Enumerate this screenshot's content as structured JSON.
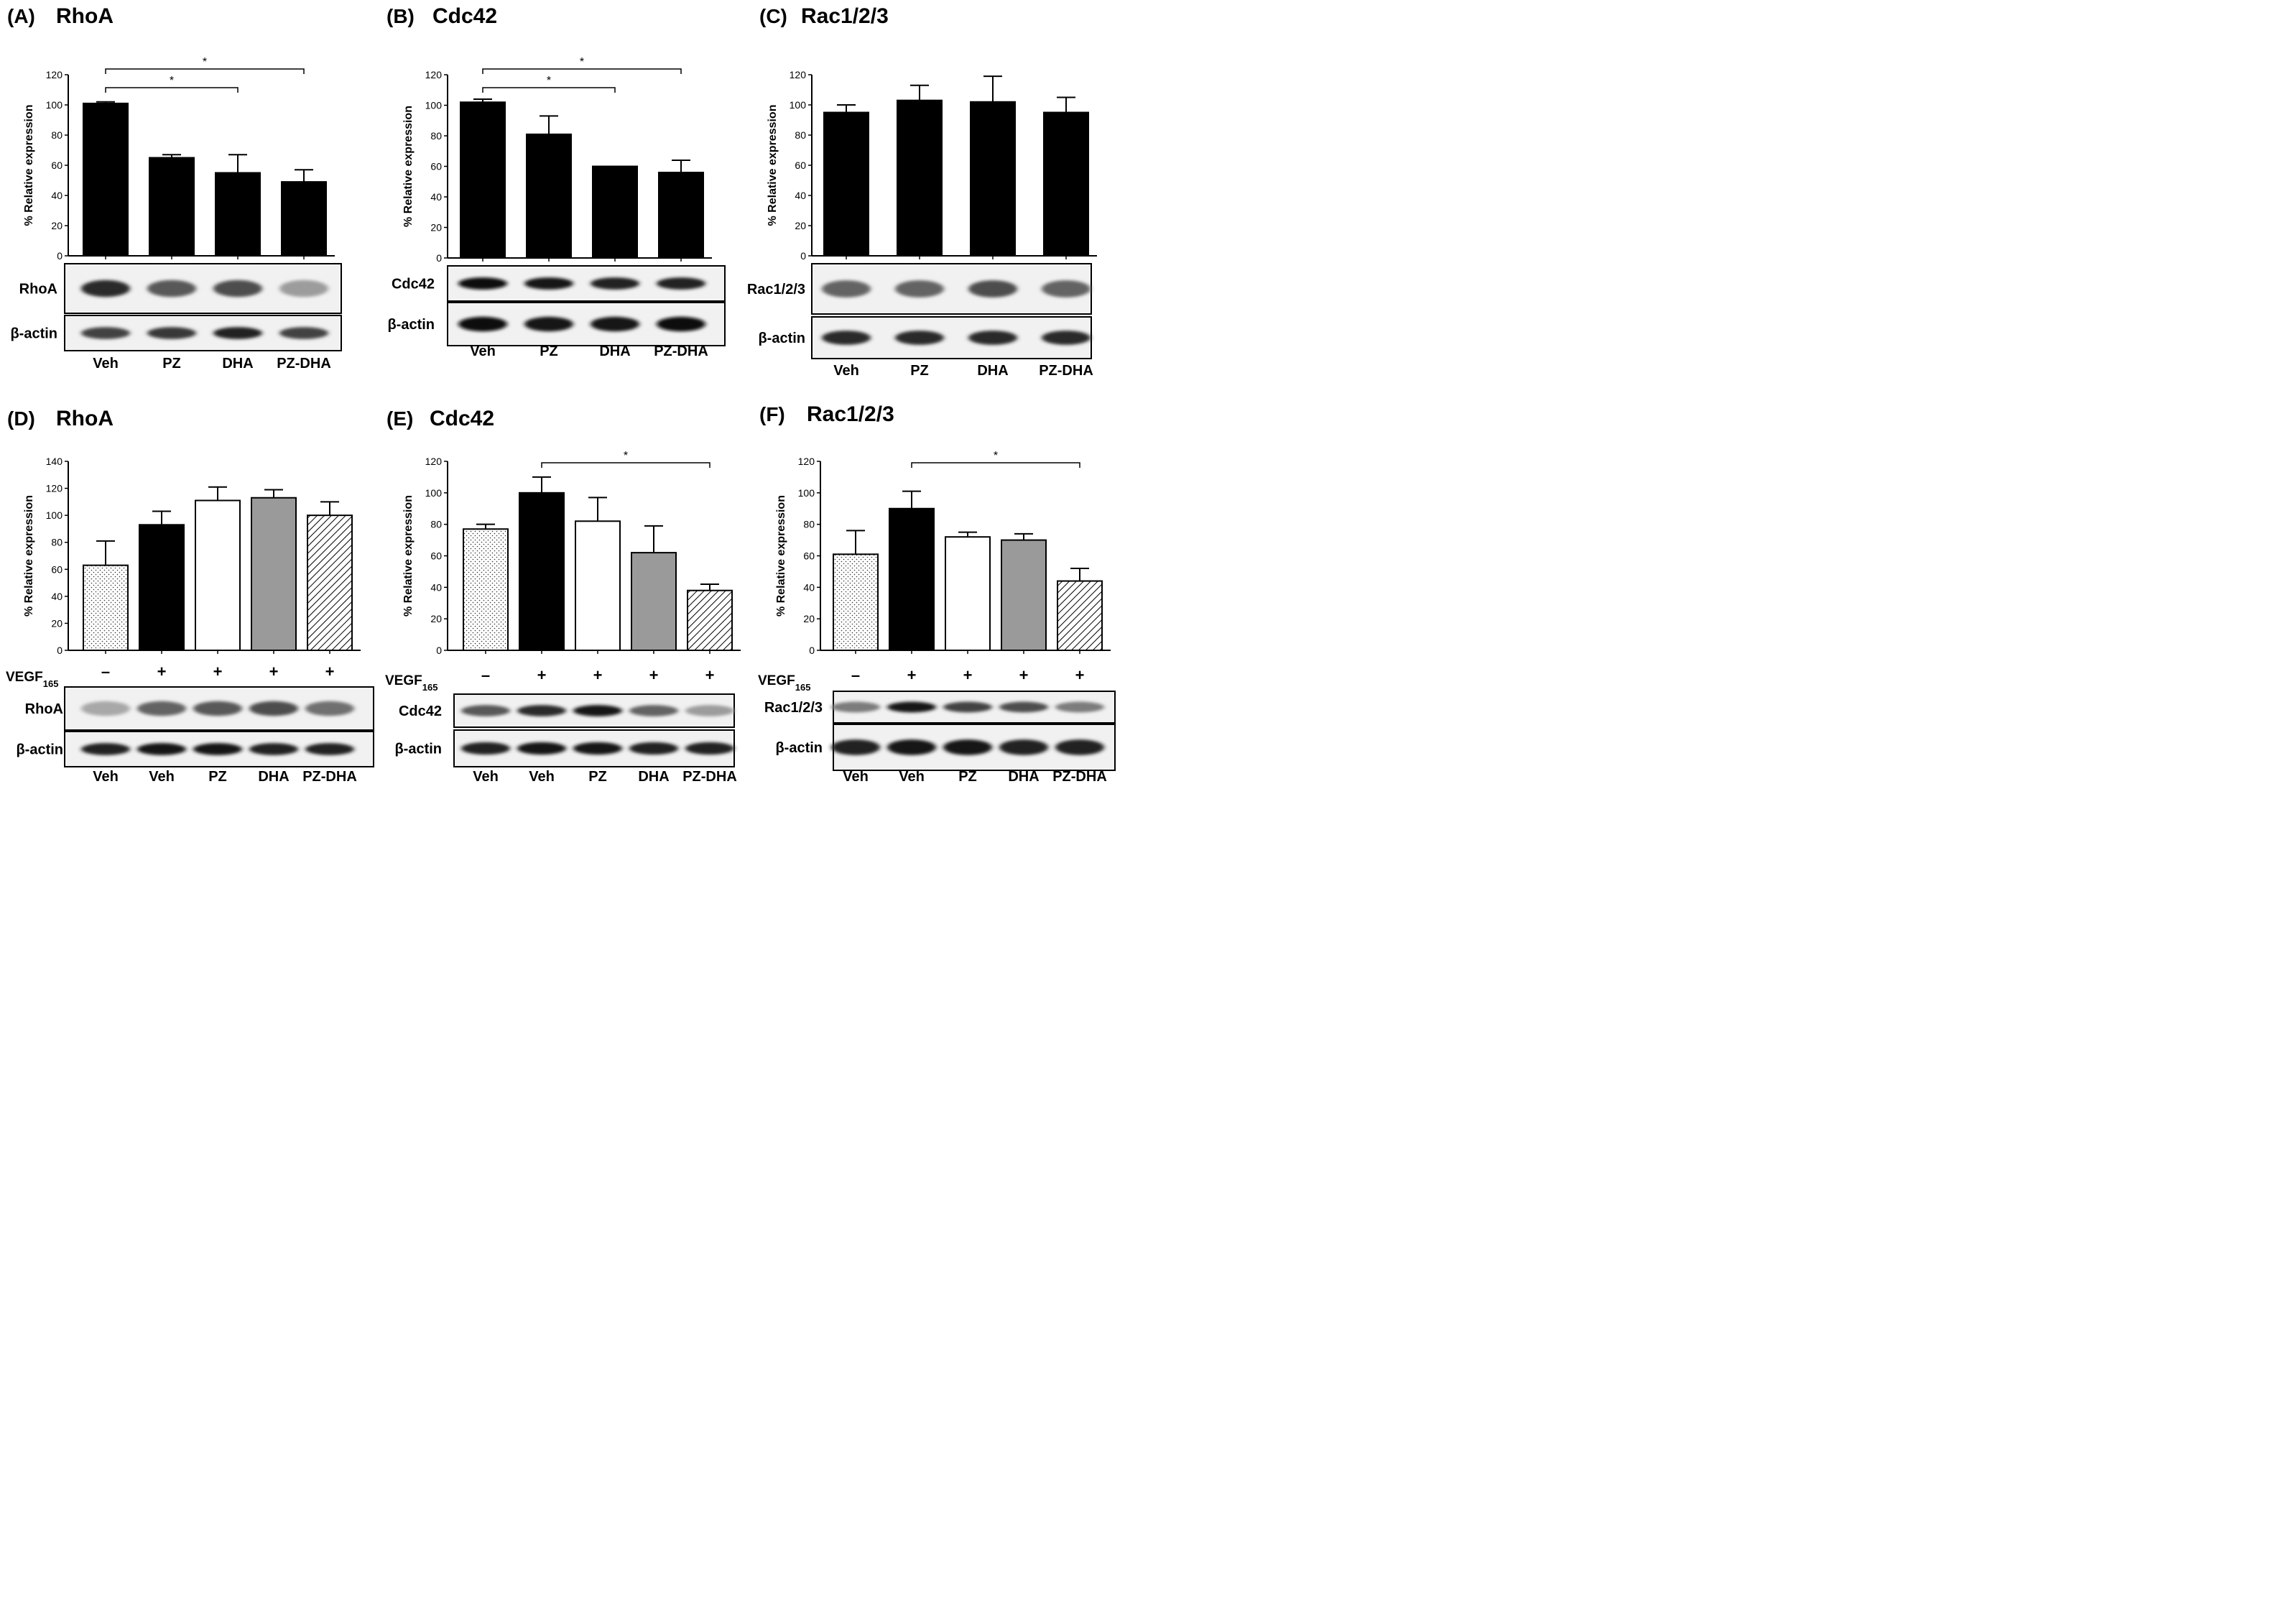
{
  "chart_data": [
    {
      "type": "bar",
      "panel": "(A)",
      "title": "RhoA",
      "ylabel": "% Relative expression",
      "ylim": [
        0,
        120
      ],
      "yticks": [
        0,
        20,
        40,
        60,
        80,
        100,
        120
      ],
      "categories": [
        "Veh",
        "PZ",
        "DHA",
        "PZ-DHA"
      ],
      "values": [
        101,
        65,
        55,
        49
      ],
      "errors": [
        1,
        2,
        12,
        8
      ],
      "fills": [
        "black",
        "black",
        "black",
        "black"
      ],
      "significance": [
        {
          "from": 0,
          "to": 2,
          "label": "*"
        },
        {
          "from": 0,
          "to": 3,
          "label": "*"
        }
      ],
      "vegf_label": "",
      "vegf_signs": [],
      "blot_rows": [
        {
          "label": "RhoA",
          "intensity": [
            0.85,
            0.65,
            0.7,
            0.35
          ]
        },
        {
          "label": "β-actin",
          "intensity": [
            0.75,
            0.8,
            0.9,
            0.75
          ]
        }
      ]
    },
    {
      "type": "bar",
      "panel": "(B)",
      "title": "Cdc42",
      "ylabel": "% Relative expression",
      "ylim": [
        0,
        120
      ],
      "yticks": [
        0,
        20,
        40,
        60,
        80,
        100,
        120
      ],
      "categories": [
        "Veh",
        "PZ",
        "DHA",
        "PZ-DHA"
      ],
      "values": [
        102,
        81,
        60,
        56
      ],
      "errors": [
        2,
        12,
        0,
        8
      ],
      "fills": [
        "black",
        "black",
        "black",
        "black"
      ],
      "significance": [
        {
          "from": 0,
          "to": 2,
          "label": "*"
        },
        {
          "from": 0,
          "to": 3,
          "label": "*"
        }
      ],
      "vegf_label": "",
      "vegf_signs": [],
      "blot_rows": [
        {
          "label": "Cdc42",
          "intensity": [
            1.0,
            0.95,
            0.9,
            0.9
          ]
        },
        {
          "label": "β-actin",
          "intensity": [
            1.0,
            0.95,
            0.95,
            1.0
          ]
        }
      ]
    },
    {
      "type": "bar",
      "panel": "(C)",
      "title": "Rac1/2/3",
      "ylabel": "% Relative expression",
      "ylim": [
        0,
        120
      ],
      "yticks": [
        0,
        20,
        40,
        60,
        80,
        100,
        120
      ],
      "categories": [
        "Veh",
        "PZ",
        "DHA",
        "PZ-DHA"
      ],
      "values": [
        95,
        103,
        102,
        95
      ],
      "errors": [
        5,
        10,
        17,
        10
      ],
      "fills": [
        "black",
        "black",
        "black",
        "black"
      ],
      "significance": [],
      "vegf_label": "",
      "vegf_signs": [],
      "blot_rows": [
        {
          "label": "Rac1/2/3",
          "intensity": [
            0.6,
            0.6,
            0.7,
            0.6
          ]
        },
        {
          "label": "β-actin",
          "intensity": [
            0.85,
            0.85,
            0.85,
            0.85
          ]
        }
      ]
    },
    {
      "type": "bar",
      "panel": "(D)",
      "title": "RhoA",
      "ylabel": "% Relative expression",
      "ylim": [
        0,
        140
      ],
      "yticks": [
        0,
        20,
        40,
        60,
        80,
        100,
        120,
        140
      ],
      "categories": [
        "Veh",
        "Veh",
        "PZ",
        "DHA",
        "PZ-DHA"
      ],
      "values": [
        63,
        93,
        111,
        113,
        100
      ],
      "errors": [
        18,
        10,
        10,
        6,
        10
      ],
      "fills": [
        "dots",
        "black",
        "white",
        "gray",
        "hatch"
      ],
      "significance": [],
      "vegf_label": "VEGF",
      "vegf_sub": "165",
      "vegf_signs": [
        "-",
        "+",
        "+",
        "+",
        "+"
      ],
      "blot_rows": [
        {
          "label": "RhoA",
          "intensity": [
            0.3,
            0.6,
            0.65,
            0.7,
            0.55
          ]
        },
        {
          "label": "β-actin",
          "intensity": [
            0.9,
            0.95,
            0.95,
            0.9,
            0.9
          ]
        }
      ]
    },
    {
      "type": "bar",
      "panel": "(E)",
      "title": "Cdc42",
      "ylabel": "% Relative expression",
      "ylim": [
        0,
        120
      ],
      "yticks": [
        0,
        20,
        40,
        60,
        80,
        100,
        120
      ],
      "categories": [
        "Veh",
        "Veh",
        "PZ",
        "DHA",
        "PZ-DHA"
      ],
      "values": [
        77,
        100,
        82,
        62,
        38
      ],
      "errors": [
        3,
        10,
        15,
        17,
        4
      ],
      "fills": [
        "dots",
        "black",
        "white",
        "gray",
        "hatch"
      ],
      "significance": [
        {
          "from": 1,
          "to": 4,
          "label": "*"
        }
      ],
      "vegf_label": "VEGF",
      "vegf_sub": "165",
      "vegf_signs": [
        "-",
        "+",
        "+",
        "+",
        "+"
      ],
      "blot_rows": [
        {
          "label": "Cdc42",
          "intensity": [
            0.65,
            0.85,
            0.95,
            0.6,
            0.35
          ]
        },
        {
          "label": "β-actin",
          "intensity": [
            0.9,
            0.95,
            0.95,
            0.9,
            0.9
          ]
        }
      ]
    },
    {
      "type": "bar",
      "panel": "(F)",
      "title": "Rac1/2/3",
      "ylabel": "% Relative expression",
      "ylim": [
        0,
        120
      ],
      "yticks": [
        0,
        20,
        40,
        60,
        80,
        100,
        120
      ],
      "categories": [
        "Veh",
        "Veh",
        "PZ",
        "DHA",
        "PZ-DHA"
      ],
      "values": [
        61,
        90,
        72,
        70,
        44
      ],
      "errors": [
        15,
        11,
        3,
        4,
        8
      ],
      "fills": [
        "dots",
        "black",
        "white",
        "gray",
        "hatch"
      ],
      "significance": [
        {
          "from": 1,
          "to": 4,
          "label": "*"
        }
      ],
      "vegf_label": "VEGF",
      "vegf_sub": "165",
      "vegf_signs": [
        "-",
        "+",
        "+",
        "+",
        "+"
      ],
      "blot_rows": [
        {
          "label": "Rac1/2/3",
          "intensity": [
            0.5,
            0.95,
            0.75,
            0.7,
            0.5
          ]
        },
        {
          "label": "β-actin",
          "intensity": [
            0.9,
            0.95,
            0.95,
            0.9,
            0.9
          ]
        }
      ]
    }
  ]
}
